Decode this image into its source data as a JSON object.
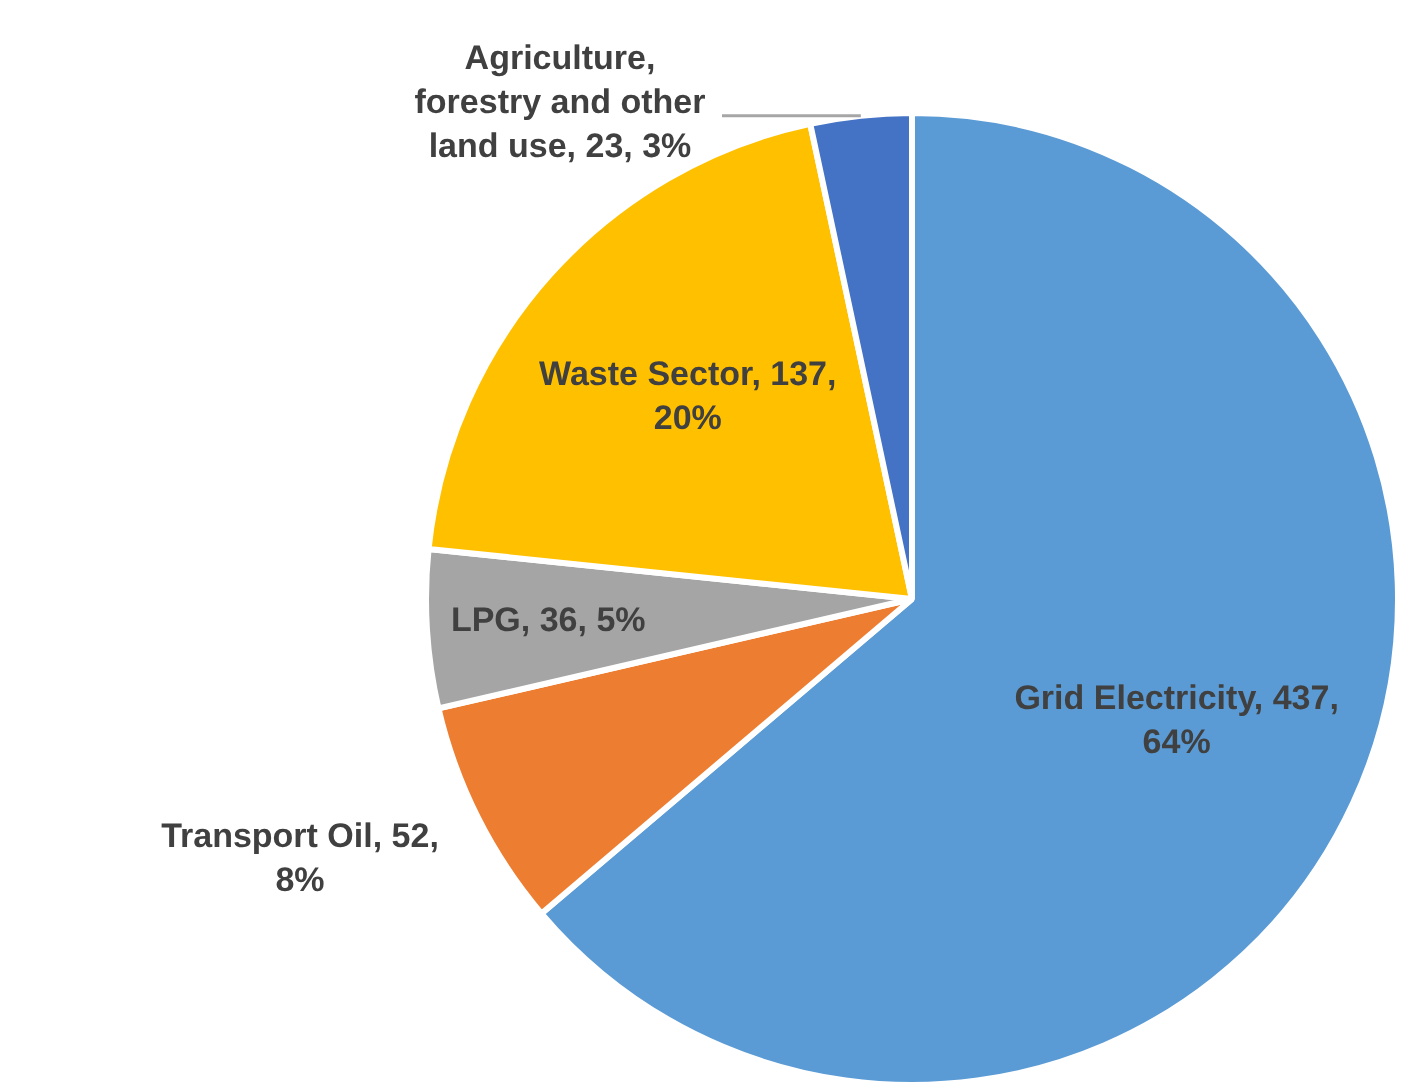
{
  "chart_data": {
    "type": "pie",
    "categories": [
      "Grid Electricity",
      "Transport Oil",
      "LPG",
      "Waste Sector",
      "Agriculture, forestry and other land use"
    ],
    "values": [
      437,
      52,
      36,
      137,
      23
    ],
    "value_labels": [
      "437, 64%",
      "52, 8%",
      "36, 5%",
      "137, 20%",
      "23, 3%"
    ],
    "colors": [
      "#5b9bd5",
      "#ed7d31",
      "#a5a5a5",
      "#ffc000",
      "#4472c4"
    ],
    "legend": false
  }
}
